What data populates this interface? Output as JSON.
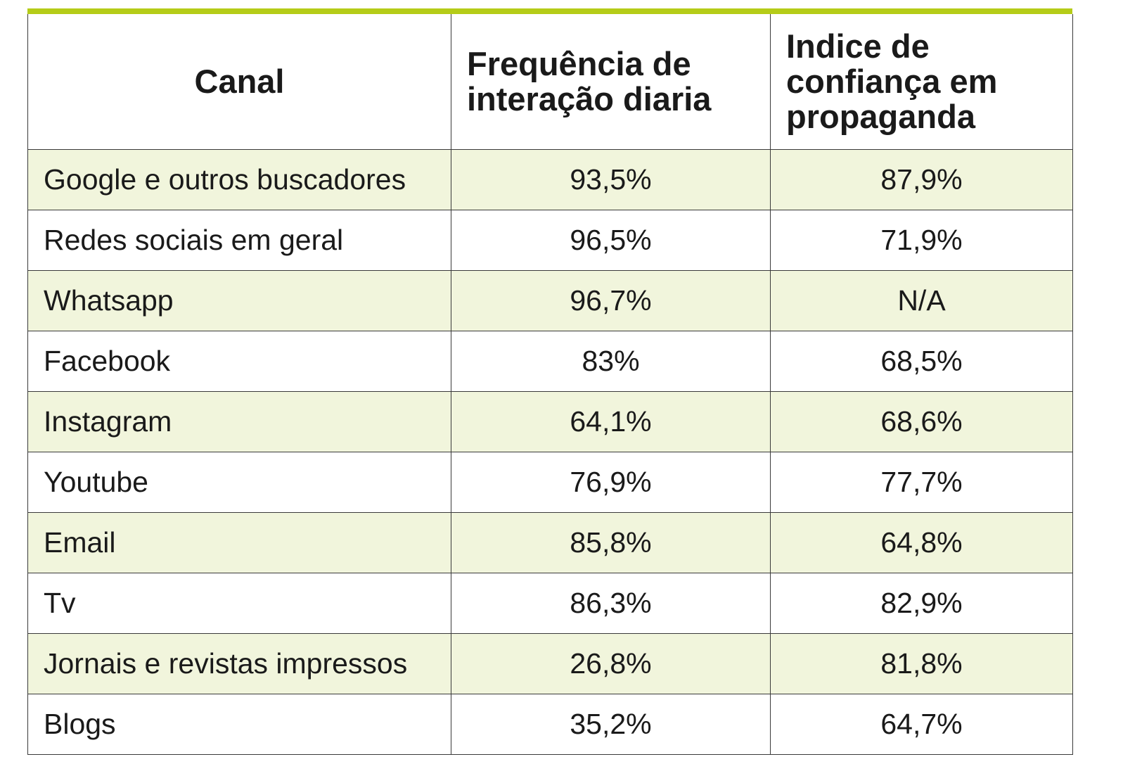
{
  "chart_data": {
    "type": "table",
    "columns": [
      "Canal",
      "Frequência de interação diaria",
      "Indice de confiança em propaganda"
    ],
    "rows": [
      [
        "Google e outros buscadores",
        "93,5%",
        "87,9%"
      ],
      [
        "Redes sociais em geral",
        "96,5%",
        "71,9%"
      ],
      [
        "Whatsapp",
        "96,7%",
        "N/A"
      ],
      [
        "Facebook",
        "83%",
        "68,5%"
      ],
      [
        "Instagram",
        "64,1%",
        "68,6%"
      ],
      [
        "Youtube",
        "76,9%",
        "77,7%"
      ],
      [
        "Email",
        "85,8%",
        "64,8%"
      ],
      [
        "Tv",
        "86,3%",
        "82,9%"
      ],
      [
        "Jornais e revistas impressos",
        "26,8%",
        "81,8%"
      ],
      [
        "Blogs",
        "35,2%",
        "64,7%"
      ]
    ]
  },
  "colors": {
    "accent_bar": "#b5cc18",
    "row_alt": "#f1f5dc",
    "border": "#3a3a3a"
  }
}
